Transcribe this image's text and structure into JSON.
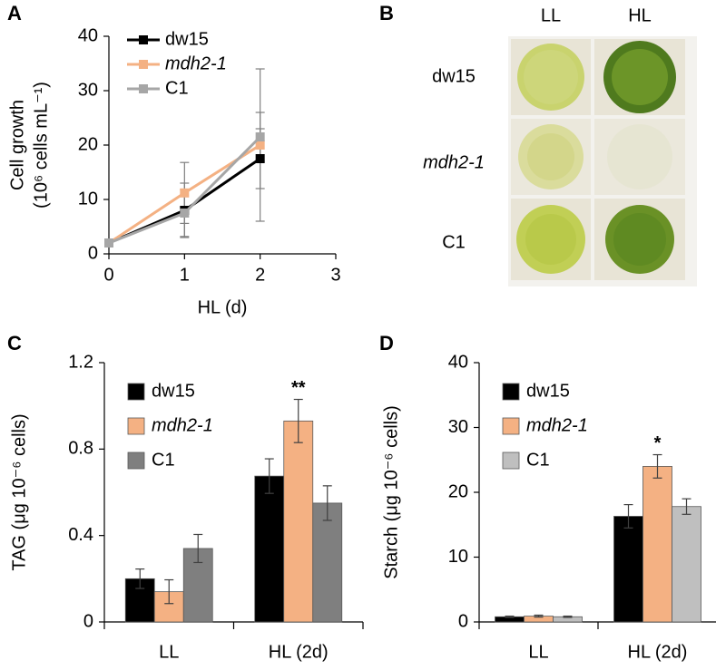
{
  "chart_data": [
    {
      "panel": "A",
      "type": "line",
      "y_label": "Cell growth",
      "y_label_2": "(10⁶ cells mL⁻¹)",
      "x_label": "HL (d)",
      "x": [
        0,
        1,
        2
      ],
      "xlim": [
        0,
        3
      ],
      "xticks": [
        0,
        1,
        2,
        3
      ],
      "ylim": [
        0,
        40
      ],
      "yticks": [
        0,
        10,
        20,
        30,
        40
      ],
      "series": [
        {
          "name": "dw15",
          "color": "#000000",
          "values": [
            2,
            8,
            17.5
          ],
          "errors": [
            0.3,
            5,
            5.5
          ]
        },
        {
          "name": "mdh2-1",
          "color": "#f4b183",
          "font_style": "italic",
          "values": [
            2,
            11.2,
            20
          ],
          "errors": [
            0.3,
            5.6,
            14
          ]
        },
        {
          "name": "C1",
          "color": "#a6a6a6",
          "values": [
            2,
            7.5,
            21.5
          ],
          "errors": [
            0.3,
            4.3,
            4.5
          ]
        }
      ]
    },
    {
      "panel": "C",
      "type": "bar",
      "y_label": "TAG (μg 10⁻⁶ cells)",
      "categories": [
        "LL",
        "HL (2d)"
      ],
      "ylim": [
        0,
        1.2
      ],
      "yticks": [
        0,
        0.4,
        0.8,
        1.2
      ],
      "annotation": "**",
      "series": [
        {
          "name": "dw15",
          "color": "#000000",
          "values": [
            0.2,
            0.675
          ],
          "errors": [
            0.045,
            0.08
          ]
        },
        {
          "name": "mdh2-1",
          "color": "#f4b183",
          "font_style": "italic",
          "values": [
            0.14,
            0.93
          ],
          "errors": [
            0.055,
            0.1
          ]
        },
        {
          "name": "C1",
          "color": "#7f7f7f",
          "values": [
            0.34,
            0.55
          ],
          "errors": [
            0.065,
            0.08
          ]
        }
      ]
    },
    {
      "panel": "D",
      "type": "bar",
      "y_label": "Starch (μg 10⁻⁶ cells)",
      "categories": [
        "LL",
        "HL (2d)"
      ],
      "ylim": [
        0,
        40
      ],
      "yticks": [
        0,
        10,
        20,
        30,
        40
      ],
      "annotation": "*",
      "series": [
        {
          "name": "dw15",
          "color": "#000000",
          "values": [
            0.8,
            16.3
          ],
          "errors": [
            0.1,
            1.8
          ]
        },
        {
          "name": "mdh2-1",
          "color": "#f4b183",
          "font_style": "italic",
          "values": [
            0.9,
            24
          ],
          "errors": [
            0.15,
            1.8
          ]
        },
        {
          "name": "C1",
          "color": "#bfbfbf",
          "values": [
            0.8,
            17.8
          ],
          "errors": [
            0.1,
            1.2
          ]
        }
      ]
    }
  ],
  "image_panel": {
    "panel": "B",
    "columns": [
      "LL",
      "HL"
    ],
    "rows": [
      "dw15",
      "mdh2-1",
      "C1"
    ]
  }
}
